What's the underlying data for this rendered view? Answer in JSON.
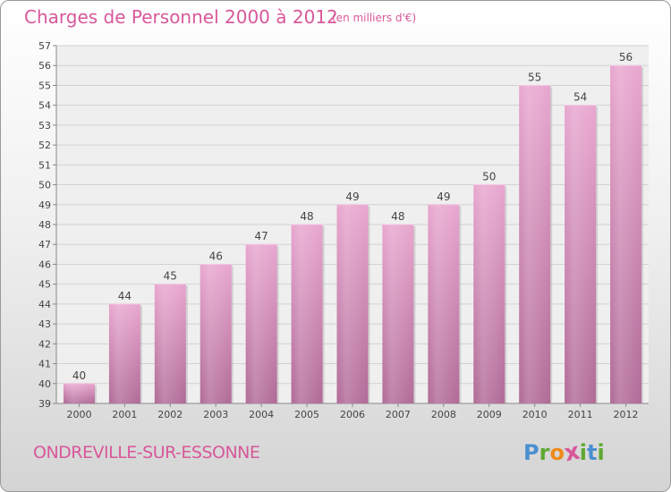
{
  "header": {
    "title": "Charges de Personnel 2000 à 2012",
    "subtitle": "(en milliers d'€)"
  },
  "footer": {
    "city": "ONDREVILLE-SUR-ESSONNE",
    "logo_letters": [
      "P",
      "r",
      "o",
      "x",
      "i",
      "t",
      "i"
    ],
    "logo_colors": [
      "#4b8fd1",
      "#5fa832",
      "#ef8a1c",
      "#d8589a",
      "#5fa832",
      "#4b8fd1",
      "#5fa832"
    ]
  },
  "chart_data": {
    "type": "bar",
    "title": "Charges de Personnel 2000 à 2012",
    "subtitle": "(en milliers d'€)",
    "categories": [
      "2000",
      "2001",
      "2002",
      "2003",
      "2004",
      "2005",
      "2006",
      "2007",
      "2008",
      "2009",
      "2010",
      "2011",
      "2012"
    ],
    "values": [
      40,
      44,
      45,
      46,
      47,
      48,
      49,
      48,
      49,
      50,
      55,
      54,
      56
    ],
    "ylim": [
      39,
      57
    ],
    "yticks": [
      39,
      40,
      41,
      42,
      43,
      44,
      45,
      46,
      47,
      48,
      49,
      50,
      51,
      52,
      53,
      54,
      55,
      56,
      57
    ],
    "grid": true,
    "bar_color": "#c77aa8"
  }
}
